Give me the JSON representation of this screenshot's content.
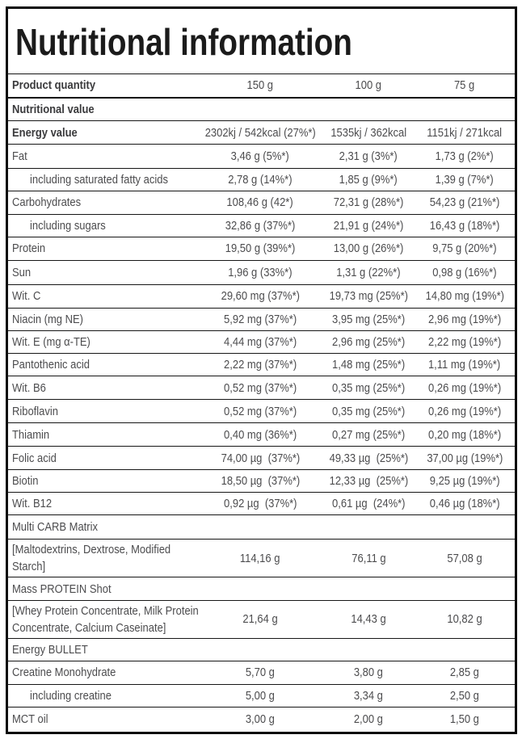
{
  "title": "Nutritional information",
  "colors": {
    "background": "#ffffff",
    "border": "#0a0a0a",
    "separator": "#161616",
    "title_text": "#1b1b1b",
    "bold_text": "#3a3a3c",
    "body_text": "#4c4c4e"
  },
  "table": {
    "rows": [
      {
        "kind": "header",
        "bold_label": true,
        "label": "Product quantity",
        "values": [
          "150 g",
          "100 g",
          "75 g"
        ]
      },
      {
        "kind": "section",
        "bold_label": true,
        "label": "Nutritional value",
        "values": []
      },
      {
        "kind": "data",
        "bold_label": true,
        "label": "Energy value",
        "values": [
          "2302kj / 542kcal (27%*)",
          "1535kj / 362kcal",
          "1151kj / 271kcal"
        ]
      },
      {
        "kind": "data",
        "label": "Fat",
        "values": [
          "3,46 g (5%*)",
          "2,31 g (3%*)",
          "1,73 g (2%*)"
        ]
      },
      {
        "kind": "data",
        "indent": true,
        "label": "including saturated fatty acids",
        "values": [
          "2,78 g (14%*)",
          "1,85 g (9%*)",
          "1,39 g (7%*)"
        ]
      },
      {
        "kind": "data",
        "label": "Carbohydrates",
        "values": [
          "108,46 g (42*)",
          "72,31 g (28%*)",
          "54,23 g (21%*)"
        ]
      },
      {
        "kind": "data",
        "indent": true,
        "label": "including sugars",
        "values": [
          "32,86 g (37%*)",
          "21,91 g (24%*)",
          "16,43 g (18%*)"
        ]
      },
      {
        "kind": "data",
        "label": "Protein",
        "values": [
          "19,50 g (39%*)",
          "13,00 g (26%*)",
          "9,75 g (20%*)"
        ]
      },
      {
        "kind": "data",
        "label": "Sun",
        "values": [
          "1,96 g (33%*)",
          "1,31 g (22%*)",
          "0,98 g (16%*)"
        ]
      },
      {
        "kind": "data",
        "label": "Wit. C",
        "values": [
          "29,60 mg (37%*)",
          "19,73 mg (25%*)",
          "14,80 mg (19%*)"
        ]
      },
      {
        "kind": "data",
        "label": "Niacin (mg NE)",
        "values": [
          "5,92 mg (37%*)",
          "3,95 mg (25%*)",
          "2,96 mg (19%*)"
        ]
      },
      {
        "kind": "data",
        "label": "Wit. E (mg α-TE)",
        "values": [
          "4,44 mg (37%*)",
          "2,96 mg (25%*)",
          "2,22 mg (19%*)"
        ]
      },
      {
        "kind": "data",
        "label": "Pantothenic acid",
        "values": [
          "2,22 mg (37%*)",
          "1,48 mg (25%*)",
          "1,11 mg (19%*)"
        ]
      },
      {
        "kind": "data",
        "label": "Wit. B6",
        "values": [
          "0,52 mg (37%*)",
          "0,35 mg (25%*)",
          "0,26 mg (19%*)"
        ]
      },
      {
        "kind": "data",
        "label": "Riboflavin",
        "values": [
          "0,52 mg (37%*)",
          "0,35 mg (25%*)",
          "0,26 mg (19%*)"
        ]
      },
      {
        "kind": "data",
        "label": "Thiamin",
        "values": [
          "0,40 mg (36%*)",
          "0,27 mg (25%*)",
          "0,20 mg (18%*)"
        ]
      },
      {
        "kind": "data",
        "label": "Folic acid",
        "values": [
          "74,00 µg  (37%*)",
          "49,33 µg  (25%*)",
          "37,00 µg (19%*)"
        ]
      },
      {
        "kind": "data",
        "label": "Biotin",
        "values": [
          "18,50 µg  (37%*)",
          "12,33 µg  (25%*)",
          "9,25 µg (19%*)"
        ]
      },
      {
        "kind": "data",
        "label": "Wit. B12",
        "values": [
          "0,92 µg  (37%*)",
          "0,61 µg  (24%*)",
          "0,46 µg (18%*)"
        ]
      },
      {
        "kind": "section",
        "label": "Multi CARB Matrix",
        "values": []
      },
      {
        "kind": "data",
        "tall": true,
        "label": "[Maltodextrins, Dextrose, Modified Starch]",
        "values": [
          "114,16 g",
          "76,11 g",
          "57,08 g"
        ]
      },
      {
        "kind": "section",
        "label": "Mass PROTEIN Shot",
        "values": []
      },
      {
        "kind": "data",
        "tall": true,
        "label": "[Whey Protein Concentrate, Milk Protein Concentrate, Calcium Caseinate]",
        "values": [
          "21,64 g",
          "14,43 g",
          "10,82 g"
        ]
      },
      {
        "kind": "section",
        "label": "Energy BULLET",
        "values": []
      },
      {
        "kind": "data",
        "label": "Creatine Monohydrate",
        "values": [
          "5,70 g",
          "3,80 g",
          "2,85 g"
        ]
      },
      {
        "kind": "data",
        "indent": true,
        "label": "including creatine",
        "values": [
          "5,00 g",
          "3,34 g",
          "2,50 g"
        ]
      },
      {
        "kind": "data",
        "label": "MCT oil",
        "values": [
          "3,00 g",
          "2,00 g",
          "1,50 g"
        ]
      }
    ]
  }
}
